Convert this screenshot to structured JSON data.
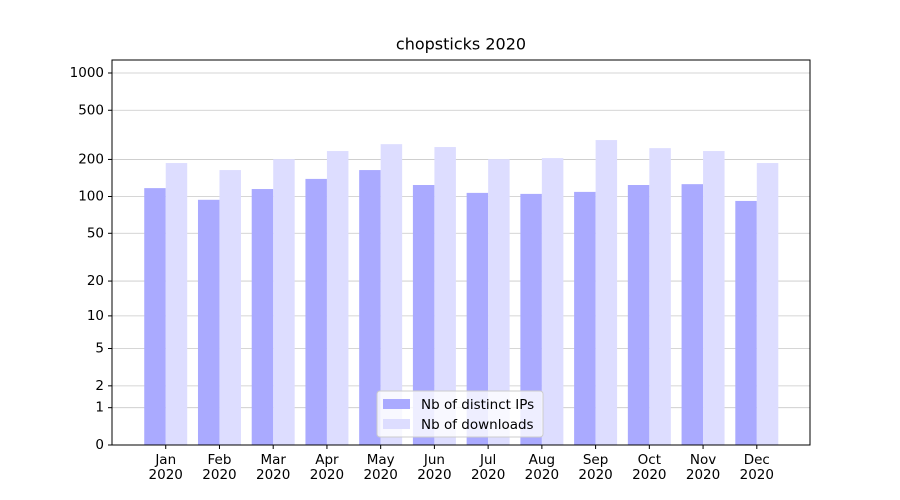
{
  "chart_data": {
    "type": "bar",
    "title": "chopsticks 2020",
    "categories": [
      "Jan\n2020",
      "Feb\n2020",
      "Mar\n2020",
      "Apr\n2020",
      "May\n2020",
      "Jun\n2020",
      "Jul\n2020",
      "Aug\n2020",
      "Sep\n2020",
      "Oct\n2020",
      "Nov\n2020",
      "Dec\n2020"
    ],
    "series": [
      {
        "name": "Nb of distinct IPs",
        "color": "#aaaaff",
        "values": [
          117,
          94,
          115,
          139,
          164,
          124,
          107,
          105,
          109,
          124,
          126,
          92
        ]
      },
      {
        "name": "Nb of downloads",
        "color": "#ddddff",
        "values": [
          187,
          164,
          201,
          234,
          266,
          252,
          201,
          205,
          287,
          247,
          234,
          187
        ]
      }
    ],
    "scale": "log1p",
    "ylim": [
      0,
      1273
    ],
    "yticks": [
      0,
      1,
      2,
      5,
      10,
      20,
      50,
      100,
      200,
      500,
      1000
    ],
    "grid": true,
    "legend": "lower center"
  }
}
